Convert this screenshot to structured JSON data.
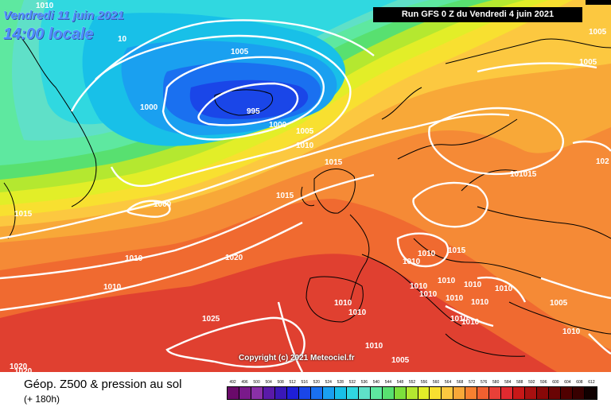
{
  "header": {
    "date": "Vendredi 11 juin 2021",
    "time": "14:00 locale",
    "run": "Run GFS 0 Z du Vendredi 4 juin 2021"
  },
  "copyright": "Copyright (c) 2021 Meteociel.fr",
  "footer": {
    "title": "Géop. Z500 & pression au sol",
    "subtitle": "(+ 180h)"
  },
  "legend_values": [
    "492",
    "496",
    "500",
    "504",
    "508",
    "512",
    "516",
    "520",
    "524",
    "528",
    "532",
    "536",
    "540",
    "544",
    "548",
    "552",
    "556",
    "560",
    "564",
    "568",
    "572",
    "576",
    "580",
    "584",
    "588",
    "592",
    "596",
    "600",
    "604",
    "608",
    "612"
  ],
  "legend_colors": [
    "#6a0a6a",
    "#7a1a8a",
    "#8a30a8",
    "#5a1aa8",
    "#3a18b8",
    "#1f1fd8",
    "#1a46e8",
    "#1a70f0",
    "#1aa0f0",
    "#18c0e8",
    "#30d8e0",
    "#5fe0c8",
    "#5ee8a0",
    "#58e070",
    "#7ce03c",
    "#b4e830",
    "#e2ee28",
    "#f8e030",
    "#fcc840",
    "#f8a838",
    "#f88030",
    "#f06030",
    "#e84038",
    "#e02a30",
    "#c81818",
    "#a81010",
    "#880808",
    "#6a0404",
    "#500000",
    "#380000",
    "#100000"
  ],
  "isobar_labels": [
    {
      "id": "l1",
      "text": "1010"
    },
    {
      "id": "l2",
      "text": "10"
    },
    {
      "id": "l3",
      "text": "1005"
    },
    {
      "id": "l4",
      "text": "1000"
    },
    {
      "id": "l5",
      "text": "995"
    },
    {
      "id": "l6",
      "text": "1000"
    },
    {
      "id": "l7",
      "text": "1005"
    },
    {
      "id": "l8",
      "text": "1010"
    },
    {
      "id": "l9",
      "text": "1015"
    },
    {
      "id": "l10",
      "text": "1015"
    },
    {
      "id": "l11",
      "text": "1000"
    },
    {
      "id": "l12",
      "text": "1015"
    },
    {
      "id": "l13",
      "text": "1010"
    },
    {
      "id": "l14",
      "text": "1020"
    },
    {
      "id": "l15",
      "text": "1010"
    },
    {
      "id": "l16",
      "text": "1025"
    },
    {
      "id": "l17",
      "text": "1020"
    },
    {
      "id": "l18",
      "text": "1020"
    },
    {
      "id": "l19",
      "text": "1010"
    },
    {
      "id": "l20",
      "text": "1005"
    },
    {
      "id": "l21",
      "text": "1010"
    },
    {
      "id": "l22",
      "text": "1010"
    },
    {
      "id": "l23",
      "text": "1015"
    },
    {
      "id": "l24",
      "text": "1010"
    },
    {
      "id": "l25",
      "text": "1010"
    },
    {
      "id": "l26",
      "text": "1010"
    },
    {
      "id": "l27",
      "text": "1010"
    },
    {
      "id": "l28",
      "text": "1010"
    },
    {
      "id": "l29",
      "text": "1010"
    },
    {
      "id": "l30",
      "text": "1010"
    },
    {
      "id": "l31",
      "text": "1005"
    },
    {
      "id": "l32",
      "text": "1010"
    },
    {
      "id": "l33",
      "text": "1005"
    },
    {
      "id": "l34",
      "text": "101015"
    },
    {
      "id": "l35",
      "text": "102"
    },
    {
      "id": "l36",
      "text": "1005"
    },
    {
      "id": "l37",
      "text": "1010"
    },
    {
      "id": "l38",
      "text": "1010"
    },
    {
      "id": "l39",
      "text": "1010"
    },
    {
      "id": "l40",
      "text": "1010"
    }
  ]
}
